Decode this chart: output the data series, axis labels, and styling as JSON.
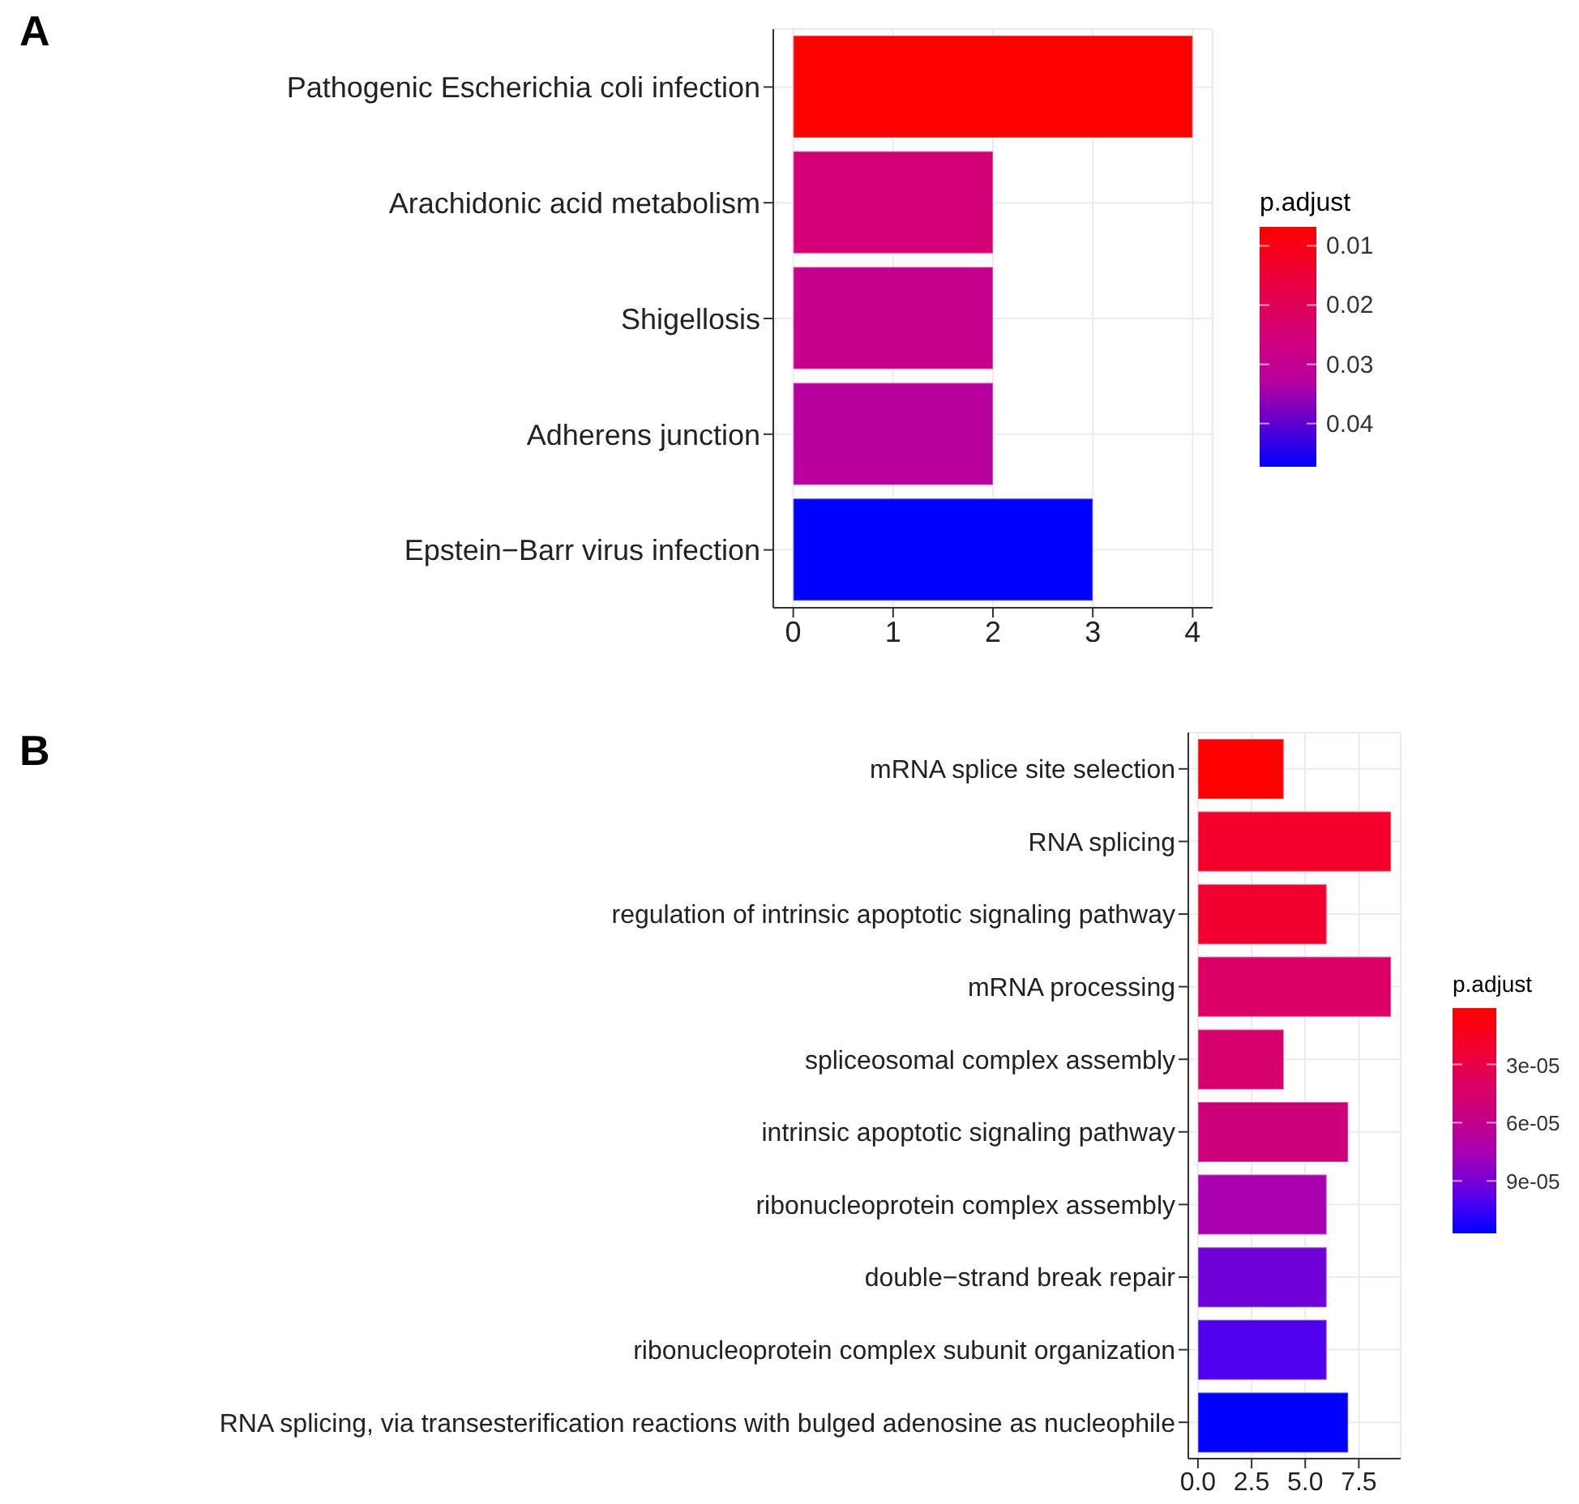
{
  "chart_data": [
    {
      "type": "bar",
      "orientation": "horizontal",
      "title": "A",
      "clabel": "p.adjust",
      "categories": [
        "Pathogenic Escherichia coli infection",
        "Arachidonic acid metabolism",
        "Shigellosis",
        "Adherens junction",
        "Epstein−Barr virus infection"
      ],
      "values": [
        4,
        2,
        2,
        2,
        3
      ],
      "cvalues": [
        0.0068,
        0.025,
        0.029,
        0.033,
        0.0473
      ],
      "colors": [
        "#ff0000",
        "#d30077",
        "#c6008c",
        "#b8009e",
        "#0000ff"
      ],
      "xlim": [
        -0.2,
        4.2
      ],
      "xticks": [
        0,
        1,
        2,
        3,
        4
      ],
      "clim": [
        0.0068,
        0.0473
      ],
      "cticks": [
        0.01,
        0.02,
        0.03,
        0.04
      ],
      "grid": true
    },
    {
      "type": "bar",
      "orientation": "horizontal",
      "title": "B",
      "clabel": "p.adjust",
      "categories": [
        "mRNA splice site selection",
        "RNA splicing",
        "regulation of intrinsic apoptotic signaling pathway",
        "mRNA processing",
        "spliceosomal complex assembly",
        "intrinsic apoptotic signaling pathway",
        "ribonucleoprotein complex assembly",
        "double−strand break repair",
        "ribonucleoprotein complex subunit organization",
        "RNA splicing, via transesterification reactions with bulged adenosine as nucleophile"
      ],
      "values": [
        4,
        9,
        6,
        9,
        4,
        7,
        6,
        6,
        6,
        7
      ],
      "cvalues": [
        1e-06,
        2e-05,
        2.2e-05,
        4e-05,
        4.5e-05,
        5.2e-05,
        7.5e-05,
        9.2e-05,
        0.0001,
        0.000117
      ],
      "colors": [
        "#ff0000",
        "#f5002c",
        "#f2002f",
        "#dc0064",
        "#d6006c",
        "#cc0078",
        "#aa00b0",
        "#7000d8",
        "#5000ef",
        "#0000ff"
      ],
      "xlim": [
        -0.45,
        9.45
      ],
      "xticks": [
        {
          "value": 0,
          "label": "0.0"
        },
        {
          "value": 2.5,
          "label": "2.5"
        },
        {
          "value": 5,
          "label": "5.0"
        },
        {
          "value": 7.5,
          "label": "7.5"
        }
      ],
      "clim": [
        1e-06,
        0.000117
      ],
      "cticks": [
        {
          "value": 3e-05,
          "label": "3e-05"
        },
        {
          "value": 6e-05,
          "label": "6e-05"
        },
        {
          "value": 9e-05,
          "label": "9e-05"
        }
      ],
      "grid": true
    }
  ]
}
